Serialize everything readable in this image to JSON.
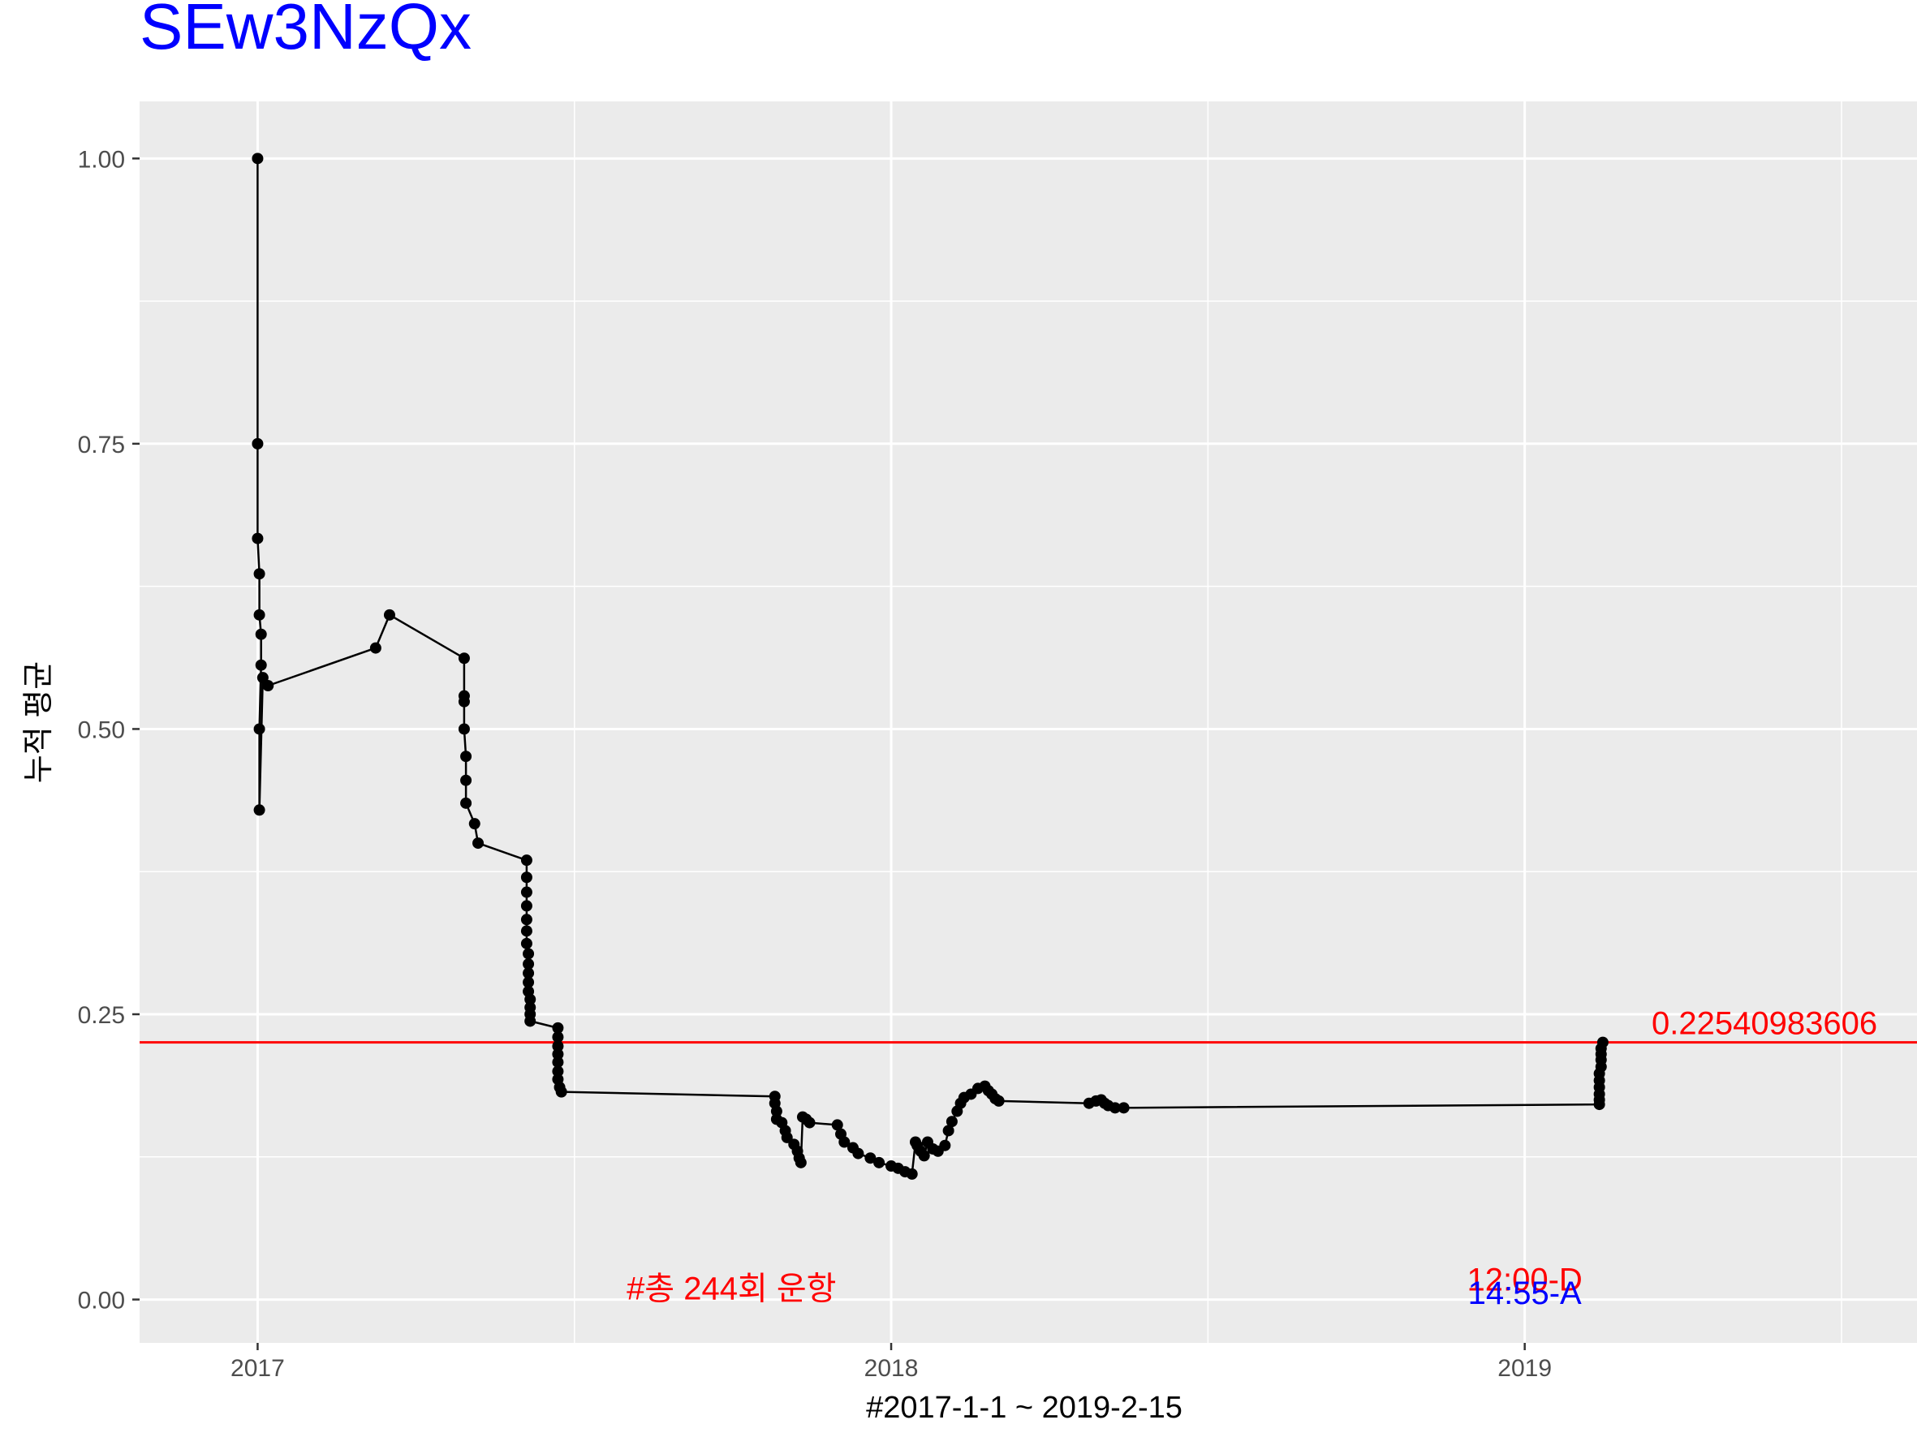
{
  "chart_data": {
    "type": "line",
    "title": "SEw3NzQx",
    "xlabel": "#2017-1-1 ~ 2019-2-15",
    "ylabel": "누적 평균",
    "x_ticks": [
      "2017",
      "2018",
      "2019"
    ],
    "y_ticks": [
      "0.00",
      "0.25",
      "0.50",
      "0.75",
      "1.00"
    ],
    "xlim": [
      "2016-10-25",
      "2019-08-15"
    ],
    "ylim": [
      -0.038,
      1.05
    ],
    "grid": true,
    "reference_line": {
      "value": 0.2254098,
      "label": "0.22540983606",
      "color": "#ff0000"
    },
    "annotations": [
      {
        "text": "#총 244회 운항",
        "x": "2017-10-01",
        "y": 0.01,
        "color": "#ff0000"
      },
      {
        "text": "12:00-D",
        "x": "2019-01-01",
        "y": 0.018,
        "color": "#ff0000"
      },
      {
        "text": "14:55-A",
        "x": "2019-01-01",
        "y": 0.006,
        "color": "#0000ff"
      }
    ],
    "series": [
      {
        "color": "#000000",
        "points": [
          [
            "2017-01-01",
            1.0
          ],
          [
            "2017-01-01",
            0.75
          ],
          [
            "2017-01-01",
            0.667
          ],
          [
            "2017-01-02",
            0.636
          ],
          [
            "2017-01-02",
            0.6
          ],
          [
            "2017-01-03",
            0.583
          ],
          [
            "2017-01-03",
            0.556
          ],
          [
            "2017-01-02",
            0.5
          ],
          [
            "2017-01-02",
            0.429
          ],
          [
            "2017-01-04",
            0.545
          ],
          [
            "2017-01-07",
            0.538
          ],
          [
            "2017-03-10",
            0.571
          ],
          [
            "2017-03-18",
            0.6
          ],
          [
            "2017-04-30",
            0.562
          ],
          [
            "2017-04-30",
            0.529
          ],
          [
            "2017-04-30",
            0.524
          ],
          [
            "2017-04-30",
            0.5
          ],
          [
            "2017-05-01",
            0.476
          ],
          [
            "2017-05-01",
            0.455
          ],
          [
            "2017-05-01",
            0.435
          ],
          [
            "2017-05-06",
            0.417
          ],
          [
            "2017-05-08",
            0.4
          ],
          [
            "2017-06-05",
            0.385
          ],
          [
            "2017-06-05",
            0.37
          ],
          [
            "2017-06-05",
            0.357
          ],
          [
            "2017-06-05",
            0.345
          ],
          [
            "2017-06-05",
            0.333
          ],
          [
            "2017-06-05",
            0.323
          ],
          [
            "2017-06-05",
            0.312
          ],
          [
            "2017-06-06",
            0.303
          ],
          [
            "2017-06-06",
            0.294
          ],
          [
            "2017-06-06",
            0.286
          ],
          [
            "2017-06-06",
            0.278
          ],
          [
            "2017-06-06",
            0.27
          ],
          [
            "2017-06-07",
            0.263
          ],
          [
            "2017-06-07",
            0.256
          ],
          [
            "2017-06-07",
            0.25
          ],
          [
            "2017-06-07",
            0.244
          ],
          [
            "2017-06-23",
            0.238
          ],
          [
            "2017-06-23",
            0.23
          ],
          [
            "2017-06-23",
            0.222
          ],
          [
            "2017-06-23",
            0.215
          ],
          [
            "2017-06-23",
            0.208
          ],
          [
            "2017-06-23",
            0.2
          ],
          [
            "2017-06-23",
            0.193
          ],
          [
            "2017-06-24",
            0.186
          ],
          [
            "2017-06-25",
            0.182
          ],
          [
            "2017-10-26",
            0.178
          ],
          [
            "2017-10-26",
            0.172
          ],
          [
            "2017-10-27",
            0.165
          ],
          [
            "2017-10-27",
            0.158
          ],
          [
            "2017-10-30",
            0.155
          ],
          [
            "2017-11-01",
            0.148
          ],
          [
            "2017-11-02",
            0.142
          ],
          [
            "2017-11-06",
            0.136
          ],
          [
            "2017-11-08",
            0.13
          ],
          [
            "2017-11-09",
            0.124
          ],
          [
            "2017-11-10",
            0.12
          ],
          [
            "2017-11-11",
            0.16
          ],
          [
            "2017-11-13",
            0.158
          ],
          [
            "2017-11-15",
            0.155
          ],
          [
            "2017-12-01",
            0.153
          ],
          [
            "2017-12-03",
            0.145
          ],
          [
            "2017-12-05",
            0.138
          ],
          [
            "2017-12-10",
            0.133
          ],
          [
            "2017-12-13",
            0.128
          ],
          [
            "2017-12-20",
            0.124
          ],
          [
            "2017-12-25",
            0.12
          ],
          [
            "2018-01-01",
            0.117
          ],
          [
            "2018-01-05",
            0.115
          ],
          [
            "2018-01-09",
            0.112
          ],
          [
            "2018-01-13",
            0.11
          ],
          [
            "2018-01-15",
            0.138
          ],
          [
            "2018-01-16",
            0.135
          ],
          [
            "2018-01-18",
            0.13
          ],
          [
            "2018-01-20",
            0.126
          ],
          [
            "2018-01-22",
            0.138
          ],
          [
            "2018-01-25",
            0.132
          ],
          [
            "2018-01-28",
            0.13
          ],
          [
            "2018-02-01",
            0.135
          ],
          [
            "2018-02-03",
            0.148
          ],
          [
            "2018-02-05",
            0.156
          ],
          [
            "2018-02-08",
            0.165
          ],
          [
            "2018-02-10",
            0.172
          ],
          [
            "2018-02-12",
            0.177
          ],
          [
            "2018-02-16",
            0.18
          ],
          [
            "2018-02-20",
            0.185
          ],
          [
            "2018-02-24",
            0.187
          ],
          [
            "2018-02-26",
            0.183
          ],
          [
            "2018-02-28",
            0.18
          ],
          [
            "2018-03-02",
            0.176
          ],
          [
            "2018-03-04",
            0.174
          ],
          [
            "2018-04-25",
            0.172
          ],
          [
            "2018-04-29",
            0.174
          ],
          [
            "2018-05-02",
            0.175
          ],
          [
            "2018-05-04",
            0.172
          ],
          [
            "2018-05-06",
            0.17
          ],
          [
            "2018-05-10",
            0.168
          ],
          [
            "2018-05-15",
            0.168
          ],
          [
            "2019-02-13",
            0.171
          ],
          [
            "2019-02-13",
            0.175
          ],
          [
            "2019-02-13",
            0.18
          ],
          [
            "2019-02-13",
            0.186
          ],
          [
            "2019-02-13",
            0.192
          ],
          [
            "2019-02-13",
            0.198
          ],
          [
            "2019-02-14",
            0.204
          ],
          [
            "2019-02-14",
            0.21
          ],
          [
            "2019-02-14",
            0.215
          ],
          [
            "2019-02-14",
            0.22
          ],
          [
            "2019-02-15",
            0.2254
          ]
        ]
      }
    ]
  }
}
